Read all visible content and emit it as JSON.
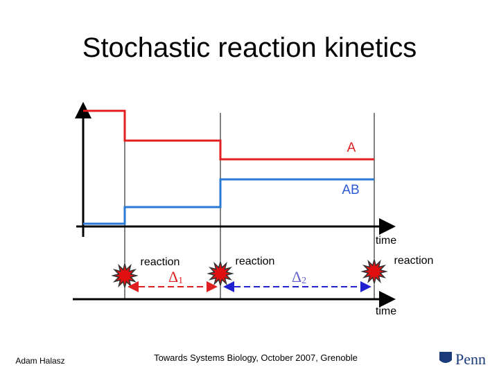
{
  "title": "Stochastic reaction kinetics",
  "species": {
    "a": "A",
    "ab": "AB"
  },
  "axis_labels": {
    "top": "time",
    "bottom": "time"
  },
  "events": [
    "reaction",
    "reaction",
    "reaction"
  ],
  "intervals": [
    {
      "symbol": "Δ",
      "subscript": "1"
    },
    {
      "symbol": "Δ",
      "subscript": "2"
    }
  ],
  "footer": {
    "author": "Adam Halasz",
    "event": "Towards Systems Biology, October 2007, Grenoble",
    "logo": "Penn"
  }
}
